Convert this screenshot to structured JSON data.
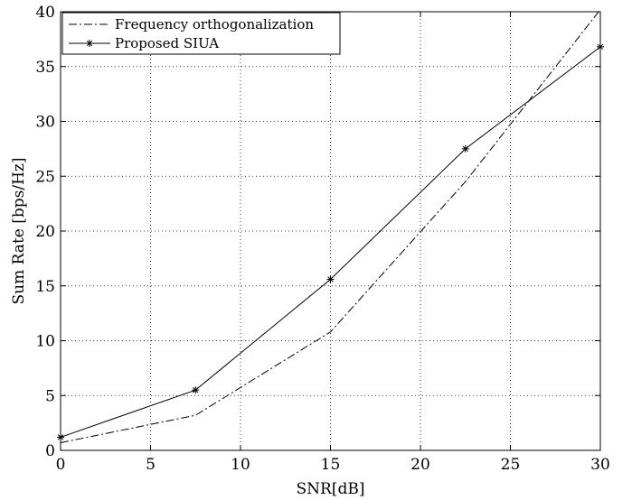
{
  "chart_data": {
    "type": "line",
    "title": "",
    "xlabel": "SNR[dB]",
    "ylabel": "Sum Rate [bps/Hz]",
    "xlim": [
      0,
      30
    ],
    "ylim": [
      0,
      40
    ],
    "xticks": [
      0,
      5,
      10,
      15,
      20,
      25,
      30
    ],
    "yticks": [
      0,
      5,
      10,
      15,
      20,
      25,
      30,
      35,
      40
    ],
    "grid": true,
    "legend_position": "top-left",
    "series": [
      {
        "name": "Frequency orthogonalization",
        "style": "dash-dot",
        "color": "#000000",
        "marker": "none",
        "x": [
          0,
          7.5,
          15,
          22.5,
          30
        ],
        "y": [
          0.7,
          3.2,
          10.8,
          24.5,
          40.2
        ]
      },
      {
        "name": "Proposed SIUA",
        "style": "solid",
        "color": "#000000",
        "marker": "asterisk",
        "x": [
          0,
          7.5,
          15,
          22.5,
          30
        ],
        "y": [
          1.2,
          5.5,
          15.6,
          27.5,
          36.8
        ]
      }
    ]
  }
}
